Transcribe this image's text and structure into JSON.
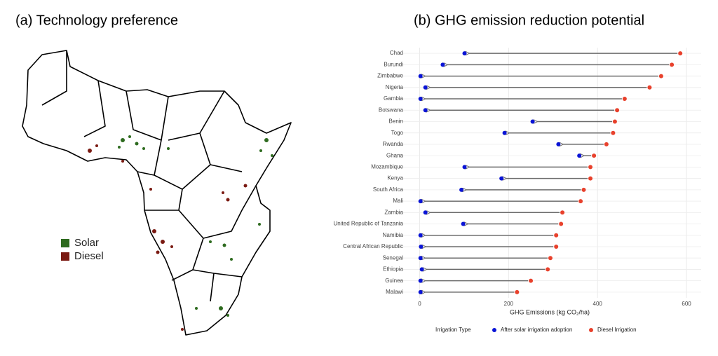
{
  "map": {
    "title": "(a) Technology preference",
    "legend": [
      {
        "name": "Solar",
        "color": "#2e6b1f"
      },
      {
        "name": "Diesel",
        "color": "#7a1a12"
      }
    ]
  },
  "chart_data": {
    "type": "dumbbell",
    "title": "(b) GHG emission reduction potential",
    "xlabel": "GHG Emissions (kg CO₂/ha)",
    "legend_title": "Irrigation Type",
    "categories": [
      "Chad",
      "Burundi",
      "Zimbabwe",
      "Nigeria",
      "Gambia",
      "Botswana",
      "Benin",
      "Togo",
      "Rwanda",
      "Ghana",
      "Mozambique",
      "Kenya",
      "South Africa",
      "Mali",
      "Zambia",
      "United Republic of Tanzania",
      "Namibia",
      "Central African Republic",
      "Senegal",
      "Ethiopia",
      "Guinea",
      "Malawi"
    ],
    "series": [
      {
        "name": "After solar irrigation adoption",
        "color": "#0a14d6",
        "values": [
          101,
          52,
          2,
          13,
          2,
          13,
          254,
          191,
          312,
          359,
          101,
          184,
          94,
          2,
          13,
          98,
          2,
          3,
          2,
          5,
          2,
          2
        ]
      },
      {
        "name": "Diesel Irrigation",
        "color": "#e8412c",
        "values": [
          586,
          567,
          543,
          517,
          461,
          444,
          439,
          435,
          420,
          392,
          384,
          384,
          369,
          362,
          321,
          318,
          307,
          307,
          294,
          288,
          250,
          219
        ]
      }
    ],
    "xlim": [
      -48,
      633
    ],
    "xticks": [
      0,
      200,
      400,
      600
    ],
    "grid": true,
    "arrow_color": "#6b6b6b"
  }
}
